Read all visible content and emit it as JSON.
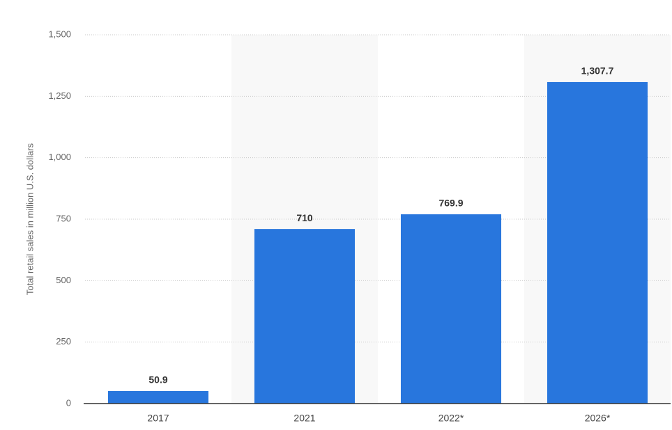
{
  "chart_data": {
    "type": "bar",
    "y_axis_label": "Total retail sales in million U.S. dollars",
    "categories": [
      "2017",
      "2021",
      "2022*",
      "2026*"
    ],
    "values": [
      50.9,
      710,
      769.9,
      1307.7
    ],
    "value_labels": [
      "50.9",
      "710",
      "769.9",
      "1,307.7"
    ],
    "color": "#2876dd",
    "ylim": [
      0,
      1500
    ],
    "yticks": [
      0,
      250,
      500,
      750,
      {
        "value": 1000,
        "label": "1,000"
      },
      {
        "value": 1250,
        "label": "1,250"
      },
      {
        "value": 1500,
        "label": "1,500"
      }
    ],
    "grid": true
  }
}
